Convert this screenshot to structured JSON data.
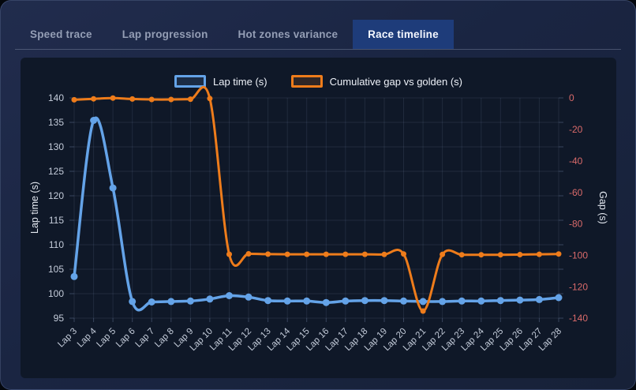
{
  "tabs": [
    {
      "label": "Speed trace",
      "active": false
    },
    {
      "label": "Lap progression",
      "active": false
    },
    {
      "label": "Hot zones variance",
      "active": false
    },
    {
      "label": "Race timeline",
      "active": true
    }
  ],
  "legend": [
    {
      "label": "Lap time (s)",
      "color": "#64a3e8"
    },
    {
      "label": "Cumulative gap vs golden (s)",
      "color": "#ee7c1b"
    }
  ],
  "colors": {
    "card_background": "#1a2542",
    "panel_background": "#0f1828",
    "active_tab": "#1e3c7a",
    "lap_time_line": "#64a3e8",
    "gap_line": "#ee7c1b",
    "left_ticks": "#c4ccda",
    "right_ticks": "#d96a6a"
  },
  "chart_data": {
    "type": "line",
    "x": [
      "Lap 3",
      "Lap 4",
      "Lap 5",
      "Lap 6",
      "Lap 7",
      "Lap 8",
      "Lap 9",
      "Lap 10",
      "Lap 11",
      "Lap 12",
      "Lap 13",
      "Lap 14",
      "Lap 15",
      "Lap 16",
      "Lap 17",
      "Lap 18",
      "Lap 19",
      "Lap 20",
      "Lap 21",
      "Lap 22",
      "Lap 23",
      "Lap 24",
      "Lap 25",
      "Lap 26",
      "Lap 27",
      "Lap 28"
    ],
    "series": [
      {
        "name": "Lap time (s)",
        "axis": "left",
        "color": "#64a3e8",
        "values": [
          103.5,
          135.4,
          121.6,
          98.4,
          98.3,
          98.4,
          98.5,
          98.9,
          99.6,
          99.3,
          98.6,
          98.5,
          98.5,
          98.2,
          98.5,
          98.6,
          98.6,
          98.5,
          98.4,
          98.4,
          98.5,
          98.5,
          98.6,
          98.7,
          98.8,
          99.2
        ]
      },
      {
        "name": "Cumulative gap vs golden (s)",
        "axis": "right",
        "color": "#ee7c1b",
        "values": [
          -1.2,
          -0.6,
          -0.1,
          -0.7,
          -1.0,
          -1.0,
          -0.8,
          -0.4,
          -99.4,
          -99.1,
          -99.3,
          -99.4,
          -99.4,
          -99.4,
          -99.4,
          -99.4,
          -99.5,
          -99.2,
          -135.5,
          -99.5,
          -99.7,
          -99.7,
          -99.7,
          -99.6,
          -99.4,
          -99.2
        ]
      }
    ],
    "left_axis": {
      "label": "Lap time (s)",
      "min": 95,
      "max": 140,
      "step": 5,
      "ticks": [
        140,
        135,
        130,
        125,
        120,
        115,
        110,
        105,
        100,
        95
      ],
      "tick_color": "#c4ccda"
    },
    "right_axis": {
      "label": "Gap (s)",
      "min": -140,
      "max": 0,
      "step": 20,
      "ticks": [
        0,
        -20,
        -40,
        -60,
        -80,
        -100,
        -120,
        -140
      ],
      "tick_color": "#d96a6a"
    },
    "grid": true,
    "legend_position": "top",
    "title": ""
  }
}
